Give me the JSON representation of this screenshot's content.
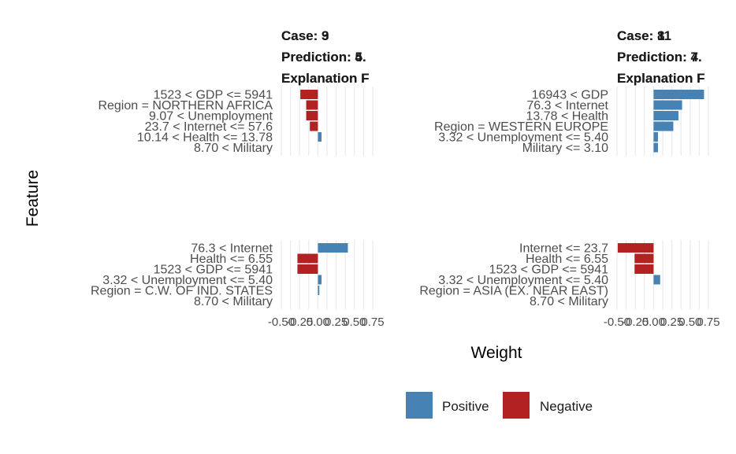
{
  "chart_data": {
    "type": "bar",
    "orientation": "horizontal",
    "xlabel": "Weight",
    "ylabel": "Feature",
    "xlim": [
      -0.5,
      0.75
    ],
    "xticks": [
      -0.5,
      -0.25,
      0,
      0.25,
      0.5,
      0.75
    ],
    "xtick_labels": [
      "-0.50",
      "-0.25",
      "0.00",
      "0.25",
      "0.50",
      "0.75"
    ],
    "legend": {
      "position": "bottom",
      "entries": [
        {
          "label": "Positive",
          "color": "#4682b4"
        },
        {
          "label": "Negative",
          "color": "#b22222"
        }
      ]
    },
    "panels": [
      {
        "case_label": "Case: 3",
        "prediction_label": "Prediction: 4.",
        "explanation_label": "Explanation F",
        "features": [
          {
            "label": "1523 < GDP <= 5941",
            "weight": -0.24
          },
          {
            "label": "Region = NORTHERN AFRICA",
            "weight": -0.16
          },
          {
            "label": "9.07 < Unemployment",
            "weight": -0.16
          },
          {
            "label": "23.7 < Internet <= 57.6",
            "weight": -0.11
          },
          {
            "label": "10.14 < Health <= 13.78",
            "weight": 0.05
          },
          {
            "label": "8.70 < Military",
            "weight": 0.0
          }
        ]
      },
      {
        "case_label": "Case: 8",
        "prediction_label": "Prediction: 7.",
        "explanation_label": "Explanation F",
        "features": [
          {
            "label": "16943 < GDP",
            "weight": 0.69
          },
          {
            "label": "76.3 < Internet",
            "weight": 0.39
          },
          {
            "label": "13.78 < Health",
            "weight": 0.34
          },
          {
            "label": "Region = WESTERN EUROPE",
            "weight": 0.27
          },
          {
            "label": "3.32 < Unemployment <= 5.40",
            "weight": 0.06
          },
          {
            "label": "Military <= 3.10",
            "weight": 0.06
          }
        ]
      },
      {
        "case_label": "Case: 9",
        "prediction_label": "Prediction: 5.",
        "explanation_label": "Explanation F",
        "features": [
          {
            "label": "76.3 < Internet",
            "weight": 0.41
          },
          {
            "label": "Health <= 6.55",
            "weight": -0.28
          },
          {
            "label": "1523 < GDP <= 5941",
            "weight": -0.28
          },
          {
            "label": "3.32 < Unemployment <= 5.40",
            "weight": 0.05
          },
          {
            "label": "Region = C.W. OF IND. STATES",
            "weight": 0.02
          },
          {
            "label": "8.70 < Military",
            "weight": 0.0
          }
        ]
      },
      {
        "case_label": "Case: 11",
        "prediction_label": "Prediction: 4.",
        "explanation_label": "Explanation F",
        "features": [
          {
            "label": "Internet <= 23.7",
            "weight": -0.49
          },
          {
            "label": "Health <= 6.55",
            "weight": -0.26
          },
          {
            "label": "1523 < GDP <= 5941",
            "weight": -0.26
          },
          {
            "label": "3.32 < Unemployment <= 5.40",
            "weight": 0.09
          },
          {
            "label": "Region = ASIA (EX. NEAR EAST)",
            "weight": 0.0
          },
          {
            "label": "8.70 < Military",
            "weight": 0.0
          }
        ]
      }
    ]
  }
}
